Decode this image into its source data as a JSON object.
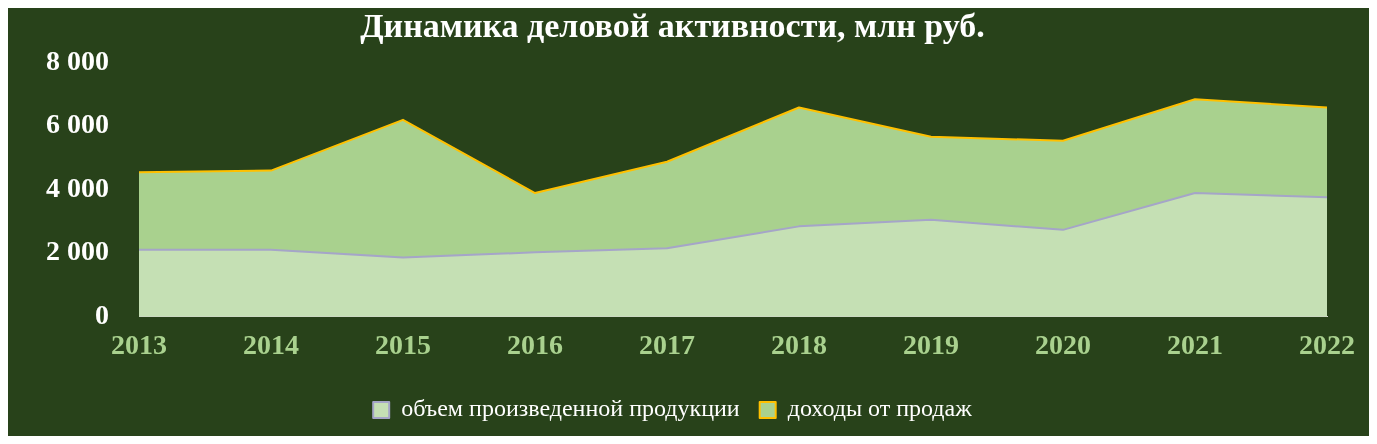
{
  "chart_data": {
    "type": "area",
    "title": "Динамика деловой активности, млн руб.",
    "categories": [
      "2013",
      "2014",
      "2015",
      "2016",
      "2017",
      "2018",
      "2019",
      "2020",
      "2021",
      "2022"
    ],
    "series": [
      {
        "name": "доходы от продаж",
        "color": "#a9d18e",
        "values": [
          4550,
          4600,
          6200,
          3890,
          4880,
          6590,
          5670,
          5540,
          6850,
          6590
        ]
      },
      {
        "name": "объем произведенной продукции",
        "color": "#c5e0b4",
        "values": [
          2100,
          2100,
          1860,
          2020,
          2150,
          2840,
          3050,
          2730,
          3890,
          3760
        ]
      }
    ],
    "ylim": [
      0,
      8000
    ],
    "yticks": [
      {
        "value": 0,
        "label": "0"
      },
      {
        "value": 2000,
        "label": "2 000"
      },
      {
        "value": 4000,
        "label": "4 000"
      },
      {
        "value": 6000,
        "label": "6 000"
      },
      {
        "value": 8000,
        "label": "8 000"
      }
    ],
    "grid": false,
    "legend": "bottom"
  }
}
